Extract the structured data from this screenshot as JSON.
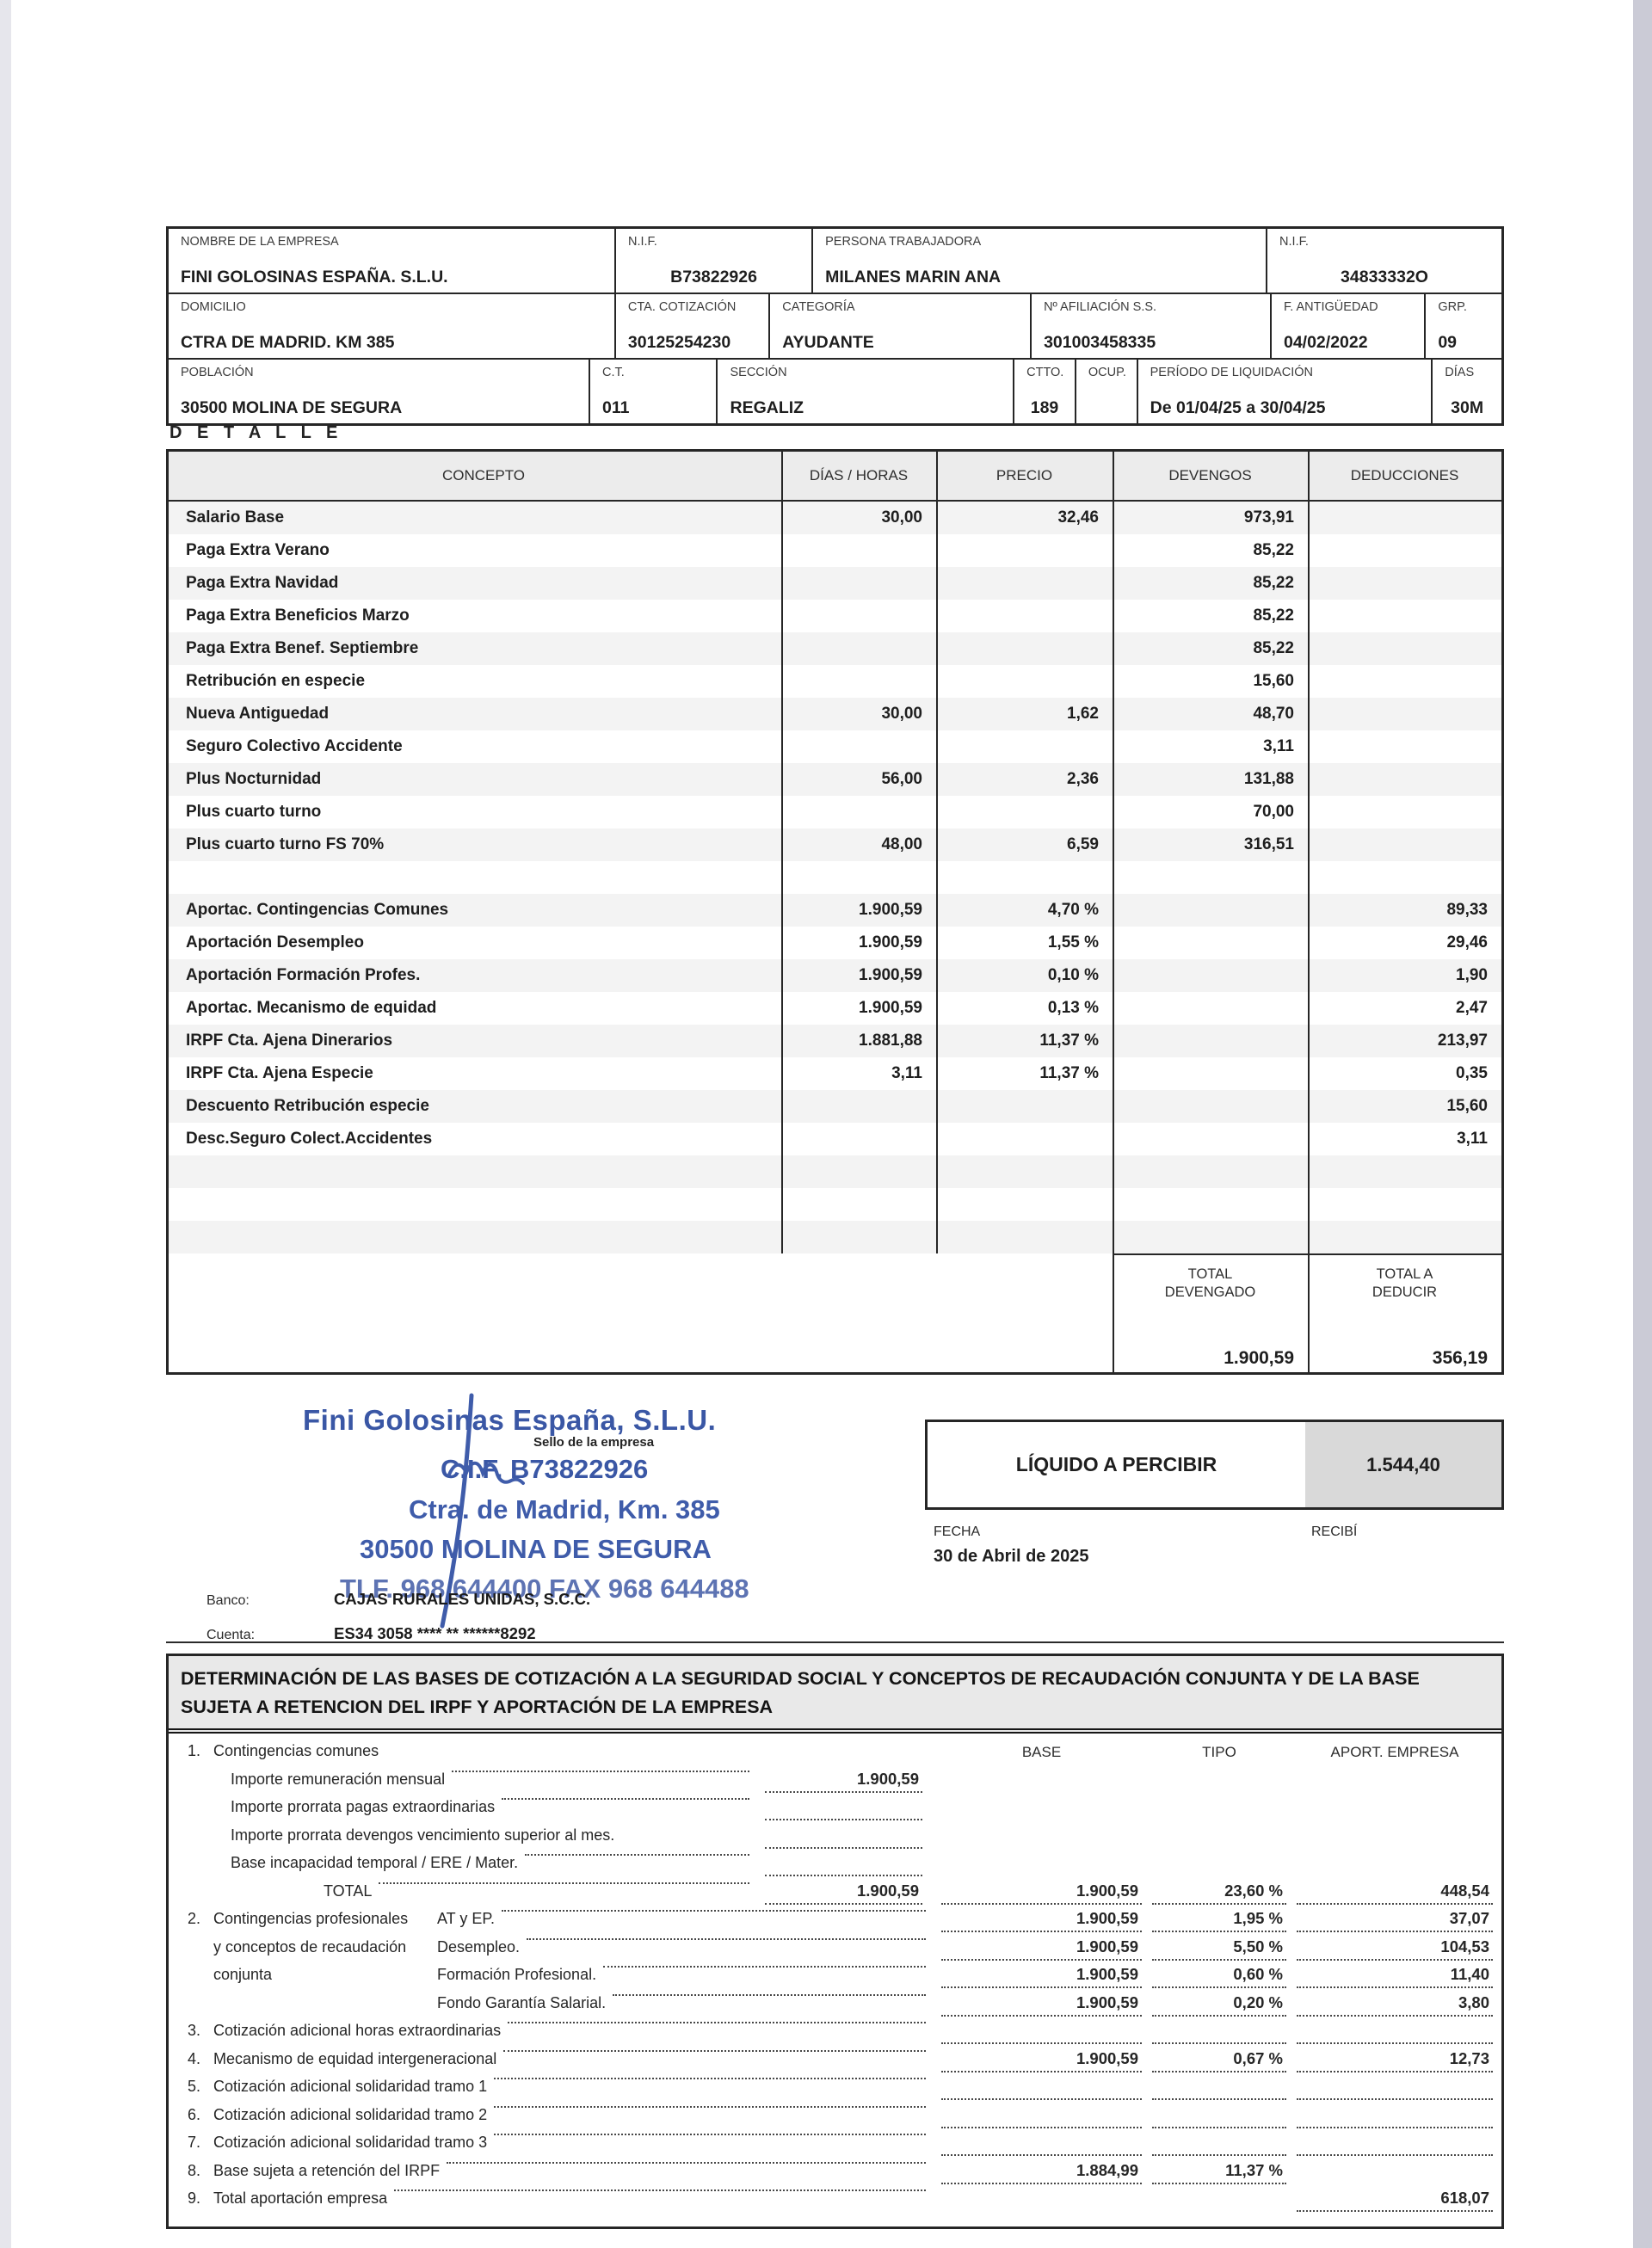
{
  "document": {
    "detalle_label": "D E T A L L E"
  },
  "employer": {
    "row1": {
      "nombre_label": "NOMBRE DE LA EMPRESA",
      "nombre": "FINI GOLOSINAS ESPAÑA. S.L.U.",
      "nif_label": "N.I.F.",
      "nif": "B73822926",
      "persona_label": "PERSONA TRABAJADORA",
      "persona": "MILANES MARIN ANA",
      "nif_trabajadora_label": "N.I.F.",
      "nif_trabajadora": "34833332O"
    },
    "row2": {
      "domicilio_label": "DOMICILIO",
      "domicilio": "CTRA DE MADRID. KM 385",
      "cta_label": "CTA. COTIZACIÓN",
      "cta": "30125254230",
      "categoria_label": "CATEGORÍA",
      "categoria": "AYUDANTE",
      "afiliacion_label": "Nº AFILIACIÓN S.S.",
      "afiliacion": "301003458335",
      "antiguedad_label": "F. ANTIGÜEDAD",
      "antiguedad": "04/02/2022",
      "grp_label": "GRP.",
      "grp": "09"
    },
    "row3": {
      "poblacion_label": "POBLACIÓN",
      "poblacion": "30500 MOLINA DE SEGURA",
      "ct_label": "C.T.",
      "ct": "011",
      "seccion_label": "SECCIÓN",
      "seccion": "REGALIZ",
      "ctto_label": "CTTO.",
      "ctto": "189",
      "ocup_label": "OCUP.",
      "ocup": "",
      "periodo_label": "PERÍODO DE LIQUIDACIÓN",
      "periodo": "De 01/04/25 a 30/04/25",
      "dias_label": "DÍAS",
      "dias": "30M"
    }
  },
  "detail_table": {
    "headers": [
      "CONCEPTO",
      "DÍAS / HORAS",
      "PRECIO",
      "DEVENGOS",
      "DEDUCCIONES"
    ],
    "rows": [
      {
        "concept": "Salario Base",
        "dias": "30,00",
        "precio": "32,46",
        "devengos": "973,91",
        "deducciones": ""
      },
      {
        "concept": "Paga Extra Verano",
        "dias": "",
        "precio": "",
        "devengos": "85,22",
        "deducciones": ""
      },
      {
        "concept": "Paga Extra Navidad",
        "dias": "",
        "precio": "",
        "devengos": "85,22",
        "deducciones": ""
      },
      {
        "concept": "Paga Extra Beneficios Marzo",
        "dias": "",
        "precio": "",
        "devengos": "85,22",
        "deducciones": ""
      },
      {
        "concept": "Paga Extra Benef. Septiembre",
        "dias": "",
        "precio": "",
        "devengos": "85,22",
        "deducciones": ""
      },
      {
        "concept": "Retribución en especie",
        "dias": "",
        "precio": "",
        "devengos": "15,60",
        "deducciones": ""
      },
      {
        "concept": "Nueva Antiguedad",
        "dias": "30,00",
        "precio": "1,62",
        "devengos": "48,70",
        "deducciones": ""
      },
      {
        "concept": "Seguro Colectivo Accidente",
        "dias": "",
        "precio": "",
        "devengos": "3,11",
        "deducciones": ""
      },
      {
        "concept": "Plus Nocturnidad",
        "dias": "56,00",
        "precio": "2,36",
        "devengos": "131,88",
        "deducciones": ""
      },
      {
        "concept": "Plus cuarto turno",
        "dias": "",
        "precio": "",
        "devengos": "70,00",
        "deducciones": ""
      },
      {
        "concept": "Plus cuarto turno FS 70%",
        "dias": "48,00",
        "precio": "6,59",
        "devengos": "316,51",
        "deducciones": ""
      },
      {
        "concept": "",
        "dias": "",
        "precio": "",
        "devengos": "",
        "deducciones": ""
      },
      {
        "concept": "Aportac. Contingencias Comunes",
        "dias": "1.900,59",
        "precio": "4,70 %",
        "devengos": "",
        "deducciones": "89,33"
      },
      {
        "concept": "Aportación Desempleo",
        "dias": "1.900,59",
        "precio": "1,55 %",
        "devengos": "",
        "deducciones": "29,46"
      },
      {
        "concept": "Aportación Formación Profes.",
        "dias": "1.900,59",
        "precio": "0,10 %",
        "devengos": "",
        "deducciones": "1,90"
      },
      {
        "concept": "Aportac. Mecanismo de equidad",
        "dias": "1.900,59",
        "precio": "0,13 %",
        "devengos": "",
        "deducciones": "2,47"
      },
      {
        "concept": "IRPF Cta. Ajena Dinerarios",
        "dias": "1.881,88",
        "precio": "11,37 %",
        "devengos": "",
        "deducciones": "213,97"
      },
      {
        "concept": "IRPF Cta. Ajena Especie",
        "dias": "3,11",
        "precio": "11,37 %",
        "devengos": "",
        "deducciones": "0,35"
      },
      {
        "concept": "Descuento Retribución especie",
        "dias": "",
        "precio": "",
        "devengos": "",
        "deducciones": "15,60"
      },
      {
        "concept": "Desc.Seguro Colect.Accidentes",
        "dias": "",
        "precio": "",
        "devengos": "",
        "deducciones": "3,11"
      },
      {
        "concept": "",
        "dias": "",
        "precio": "",
        "devengos": "",
        "deducciones": ""
      },
      {
        "concept": "",
        "dias": "",
        "precio": "",
        "devengos": "",
        "deducciones": ""
      },
      {
        "concept": "",
        "dias": "",
        "precio": "",
        "devengos": "",
        "deducciones": ""
      }
    ],
    "totals": {
      "devengado_label": "TOTAL DEVENGADO",
      "devengado": "1.900,59",
      "deducir_label": "TOTAL A DEDUCIR",
      "deducir": "356,19"
    }
  },
  "stamp": {
    "company": "Fini Golosinas España, S.L.U.",
    "sello": "Sello de la empresa",
    "cif": "C.I.F. B73822926",
    "address": "Ctra. de Madrid, Km. 385",
    "city": "30500 MOLINA DE SEGURA",
    "phone": "TLF. 968 644400  FAX 968 644488",
    "ink_color": "#3a57a5"
  },
  "bank": {
    "banco_label": "Banco:",
    "banco": "CAJAS RURALES UNIDAS, S.C.C.",
    "cuenta_label": "Cuenta:",
    "cuenta": "ES34 3058 **** ** ******8292"
  },
  "liquid": {
    "label": "LÍQUIDO A PERCIBIR",
    "amount": "1.544,40",
    "fecha_label": "FECHA",
    "fecha": "30 de Abril de 2025",
    "recibi_label": "RECIBÍ"
  },
  "determination": {
    "title_line1": "DETERMINACIÓN DE LAS BASES DE COTIZACIÓN A LA SEGURIDAD SOCIAL Y CONCEPTOS DE RECAUDACIÓN CONJUNTA Y DE LA BASE",
    "title_line2": "SUJETA A RETENCION DEL IRPF Y APORTACIÓN DE LA EMPRESA",
    "col_headers": {
      "base": "BASE",
      "tipo": "TIPO",
      "aport": "APORT. EMPRESA"
    },
    "rows": [
      {
        "num": "1.",
        "text": "Contingencias comunes",
        "headers": true
      },
      {
        "text": "Importe remuneración mensual",
        "indent": "sub",
        "lead": true,
        "c1": "1.900,59"
      },
      {
        "text": "Importe prorrata pagas extraordinarias",
        "indent": "sub",
        "lead": true,
        "c1": ""
      },
      {
        "text": "Importe prorrata devengos vencimiento superior al mes.",
        "indent": "sub",
        "lead": false,
        "c1": ""
      },
      {
        "text": "Base incapacidad temporal / ERE / Mater.",
        "indent": "sub",
        "lead": true,
        "c1": ""
      },
      {
        "text": "TOTAL",
        "indent": "total",
        "lead": true,
        "c1": "1.900,59",
        "base": "1.900,59",
        "tipo": "23,60 %",
        "aport": "448,54"
      },
      {
        "num": "2.",
        "text": "Contingencias profesionales",
        "sub": "AT y EP.",
        "lead": true,
        "base": "1.900,59",
        "tipo": "1,95 %",
        "aport": "37,07"
      },
      {
        "text": "y conceptos de recaudación",
        "sub": "Desempleo.",
        "lead": true,
        "base": "1.900,59",
        "tipo": "5,50 %",
        "aport": "104,53"
      },
      {
        "text": "conjunta",
        "sub": "Formación Profesional.",
        "lead": true,
        "base": "1.900,59",
        "tipo": "0,60 %",
        "aport": "11,40"
      },
      {
        "text": "",
        "sub": "Fondo Garantía Salarial.",
        "lead": true,
        "base": "1.900,59",
        "tipo": "0,20 %",
        "aport": "3,80"
      },
      {
        "num": "3.",
        "text": "Cotización adicional horas extraordinarias",
        "lead": true,
        "base": "",
        "tipo": "",
        "aport": ""
      },
      {
        "num": "4.",
        "text": "Mecanismo de equidad intergeneracional",
        "lead": true,
        "base": "1.900,59",
        "tipo": "0,67 %",
        "aport": "12,73"
      },
      {
        "num": "5.",
        "text": "Cotización adicional solidaridad tramo 1",
        "lead": true,
        "base": "",
        "tipo": "",
        "aport": ""
      },
      {
        "num": "6.",
        "text": "Cotización adicional solidaridad tramo 2",
        "lead": true,
        "base": "",
        "tipo": "",
        "aport": ""
      },
      {
        "num": "7.",
        "text": "Cotización adicional solidaridad tramo 3",
        "lead": true,
        "base": "",
        "tipo": "",
        "aport": ""
      },
      {
        "num": "8.",
        "text": "Base sujeta a retención del IRPF",
        "lead": true,
        "base": "1.884,99",
        "tipo": "11,37 %"
      },
      {
        "num": "9.",
        "text": "Total aportación empresa",
        "lead": true,
        "aport": "618,07"
      }
    ]
  }
}
